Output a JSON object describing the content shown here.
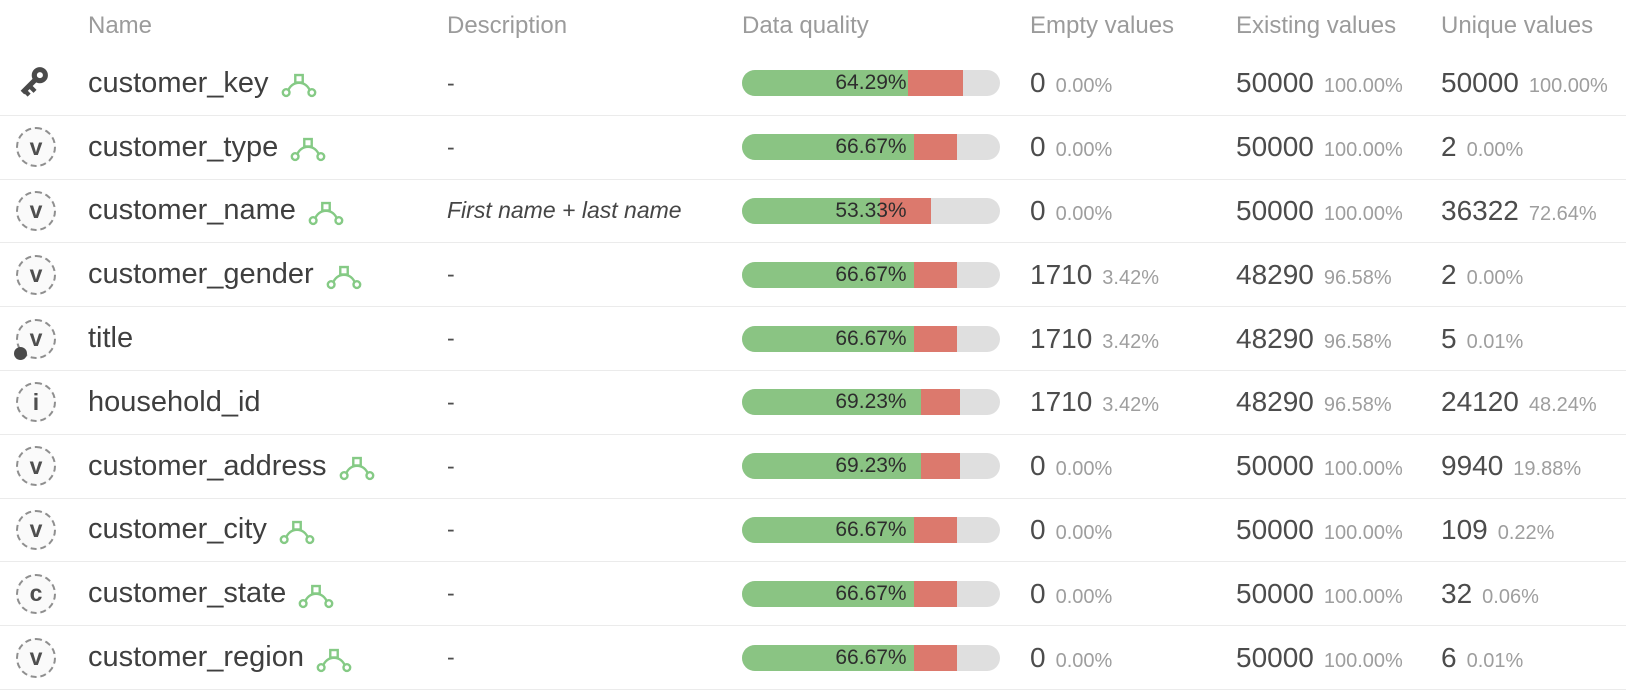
{
  "header": {
    "name": "Name",
    "description": "Description",
    "data_quality": "Data quality",
    "empty_values": "Empty values",
    "existing_values": "Existing values",
    "unique_values": "Unique values"
  },
  "colors": {
    "quality_green": "#8ac483",
    "quality_red": "#dc796d",
    "quality_track": "#dfdfdf",
    "relation_icon_green": "#85ca85",
    "key_icon_gray": "#4a4a4a"
  },
  "rows": [
    {
      "name": "customer_key",
      "type_icon": "key",
      "icon_letter": "",
      "has_nullable_dot": false,
      "has_relation_icon": true,
      "description": "-",
      "description_italic": false,
      "quality_label": "64.29%",
      "quality_green_pct": 64.29,
      "quality_red_pct": 21.43,
      "empty_count": "0",
      "empty_pct": "0.00%",
      "existing_count": "50000",
      "existing_pct": "100.00%",
      "unique_count": "50000",
      "unique_pct": "100.00%"
    },
    {
      "name": "customer_type",
      "type_icon": "letter",
      "icon_letter": "v",
      "has_nullable_dot": false,
      "has_relation_icon": true,
      "description": "-",
      "description_italic": false,
      "quality_label": "66.67%",
      "quality_green_pct": 66.67,
      "quality_red_pct": 16.67,
      "empty_count": "0",
      "empty_pct": "0.00%",
      "existing_count": "50000",
      "existing_pct": "100.00%",
      "unique_count": "2",
      "unique_pct": "0.00%"
    },
    {
      "name": "customer_name",
      "type_icon": "letter",
      "icon_letter": "v",
      "has_nullable_dot": false,
      "has_relation_icon": true,
      "description": "First name + last name",
      "description_italic": true,
      "quality_label": "53.33%",
      "quality_green_pct": 53.33,
      "quality_red_pct": 20.0,
      "empty_count": "0",
      "empty_pct": "0.00%",
      "existing_count": "50000",
      "existing_pct": "100.00%",
      "unique_count": "36322",
      "unique_pct": "72.64%"
    },
    {
      "name": "customer_gender",
      "type_icon": "letter",
      "icon_letter": "v",
      "has_nullable_dot": false,
      "has_relation_icon": true,
      "description": "-",
      "description_italic": false,
      "quality_label": "66.67%",
      "quality_green_pct": 66.67,
      "quality_red_pct": 16.67,
      "empty_count": "1710",
      "empty_pct": "3.42%",
      "existing_count": "48290",
      "existing_pct": "96.58%",
      "unique_count": "2",
      "unique_pct": "0.00%"
    },
    {
      "name": "title",
      "type_icon": "letter",
      "icon_letter": "v",
      "has_nullable_dot": true,
      "has_relation_icon": false,
      "description": "-",
      "description_italic": false,
      "quality_label": "66.67%",
      "quality_green_pct": 66.67,
      "quality_red_pct": 16.67,
      "empty_count": "1710",
      "empty_pct": "3.42%",
      "existing_count": "48290",
      "existing_pct": "96.58%",
      "unique_count": "5",
      "unique_pct": "0.01%"
    },
    {
      "name": "household_id",
      "type_icon": "letter",
      "icon_letter": "i",
      "has_nullable_dot": false,
      "has_relation_icon": false,
      "description": "-",
      "description_italic": false,
      "quality_label": "69.23%",
      "quality_green_pct": 69.23,
      "quality_red_pct": 15.38,
      "empty_count": "1710",
      "empty_pct": "3.42%",
      "existing_count": "48290",
      "existing_pct": "96.58%",
      "unique_count": "24120",
      "unique_pct": "48.24%"
    },
    {
      "name": "customer_address",
      "type_icon": "letter",
      "icon_letter": "v",
      "has_nullable_dot": false,
      "has_relation_icon": true,
      "description": "-",
      "description_italic": false,
      "quality_label": "69.23%",
      "quality_green_pct": 69.23,
      "quality_red_pct": 15.38,
      "empty_count": "0",
      "empty_pct": "0.00%",
      "existing_count": "50000",
      "existing_pct": "100.00%",
      "unique_count": "9940",
      "unique_pct": "19.88%"
    },
    {
      "name": "customer_city",
      "type_icon": "letter",
      "icon_letter": "v",
      "has_nullable_dot": false,
      "has_relation_icon": true,
      "description": "-",
      "description_italic": false,
      "quality_label": "66.67%",
      "quality_green_pct": 66.67,
      "quality_red_pct": 16.67,
      "empty_count": "0",
      "empty_pct": "0.00%",
      "existing_count": "50000",
      "existing_pct": "100.00%",
      "unique_count": "109",
      "unique_pct": "0.22%"
    },
    {
      "name": "customer_state",
      "type_icon": "letter",
      "icon_letter": "c",
      "has_nullable_dot": false,
      "has_relation_icon": true,
      "description": "-",
      "description_italic": false,
      "quality_label": "66.67%",
      "quality_green_pct": 66.67,
      "quality_red_pct": 16.67,
      "empty_count": "0",
      "empty_pct": "0.00%",
      "existing_count": "50000",
      "existing_pct": "100.00%",
      "unique_count": "32",
      "unique_pct": "0.06%"
    },
    {
      "name": "customer_region",
      "type_icon": "letter",
      "icon_letter": "v",
      "has_nullable_dot": false,
      "has_relation_icon": true,
      "description": "-",
      "description_italic": false,
      "quality_label": "66.67%",
      "quality_green_pct": 66.67,
      "quality_red_pct": 16.67,
      "empty_count": "0",
      "empty_pct": "0.00%",
      "existing_count": "50000",
      "existing_pct": "100.00%",
      "unique_count": "6",
      "unique_pct": "0.01%"
    }
  ]
}
